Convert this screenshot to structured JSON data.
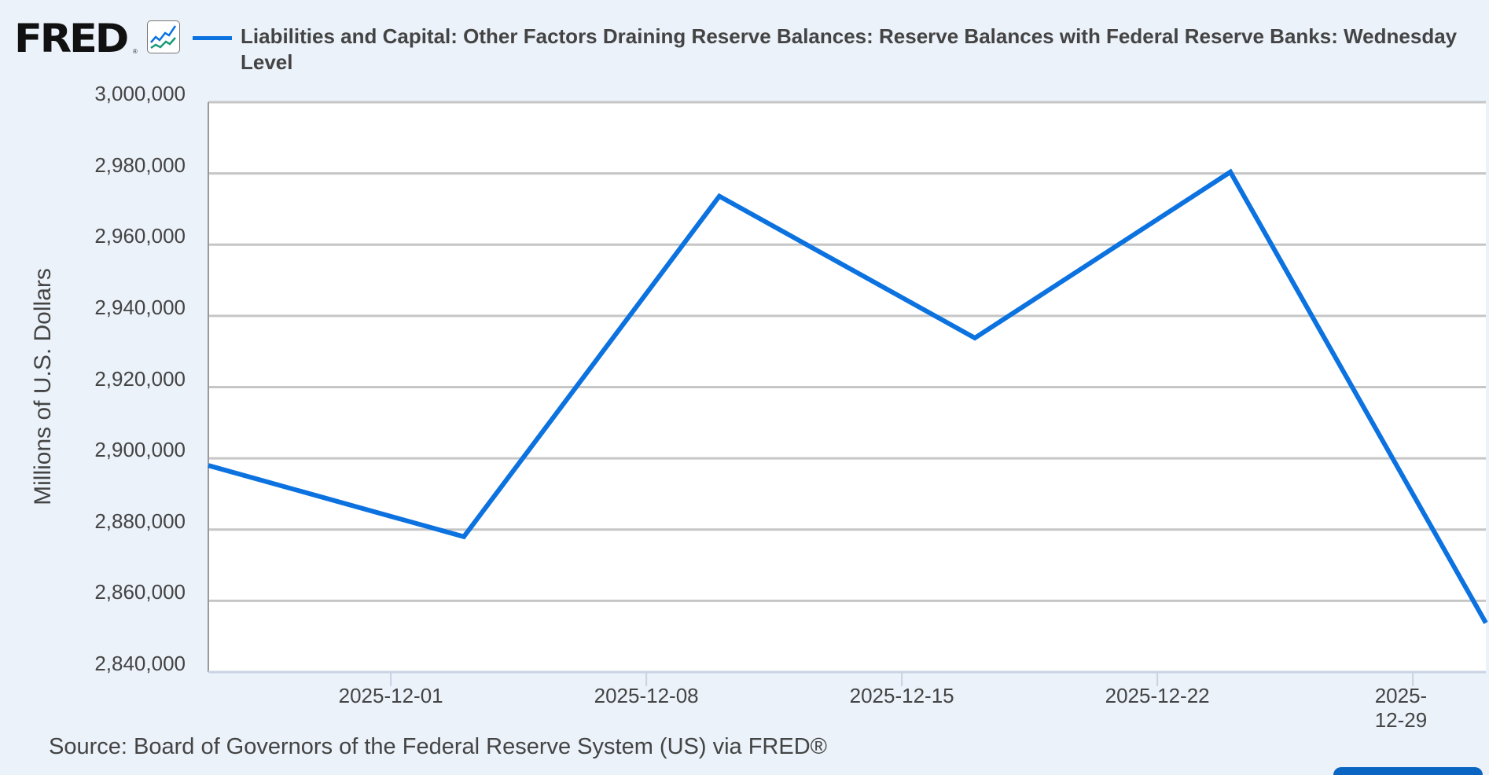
{
  "header": {
    "logo_text": "FRED",
    "logo_reg": "®",
    "logo_icon": "line-chart-icon",
    "legend_color": "#0b72e0",
    "series_title": "Liabilities and Capital: Other Factors Draining Reserve Balances: Reserve Balances with Federal Reserve Banks: Wednesday Level"
  },
  "footer": {
    "source": "Source: Board of Governors of the Federal Reserve System (US) via FRED®"
  },
  "chart_data": {
    "type": "line",
    "title": "Liabilities and Capital: Other Factors Draining Reserve Balances: Reserve Balances with Federal Reserve Banks: Wednesday Level",
    "xlabel": "",
    "ylabel": "Millions of U.S. Dollars",
    "ylim": [
      2840000,
      3000000
    ],
    "yticks": [
      "3,000,000",
      "2,980,000",
      "2,960,000",
      "2,940,000",
      "2,920,000",
      "2,900,000",
      "2,880,000",
      "2,860,000",
      "2,840,000"
    ],
    "xticks": [
      "2025-12-01",
      "2025-12-08",
      "2025-12-15",
      "2025-12-22",
      "2025-12-29"
    ],
    "grid": true,
    "legend_position": "top",
    "series": [
      {
        "name": "Liabilities and Capital: Other Factors Draining Reserve Balances: Reserve Balances with Federal Reserve Banks: Wednesday Level",
        "color": "#0b72e0",
        "x": [
          "2025-11-26",
          "2025-12-03",
          "2025-12-10",
          "2025-12-17",
          "2025-12-24",
          "2025-12-31"
        ],
        "values": [
          2898000,
          2878000,
          2973600,
          2933800,
          2980400,
          2853800
        ]
      }
    ]
  }
}
